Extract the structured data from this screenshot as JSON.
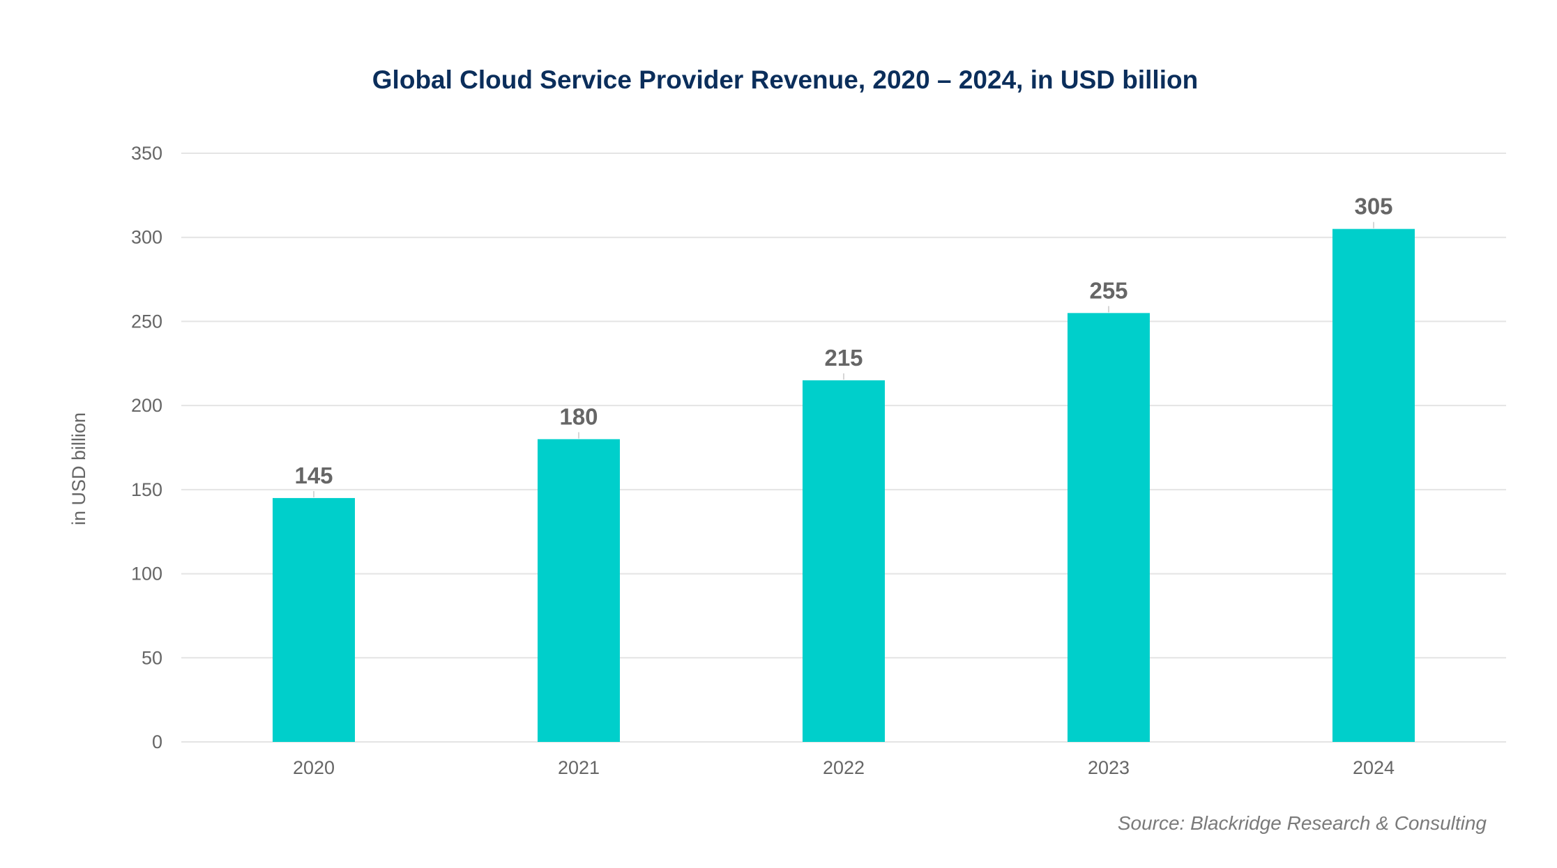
{
  "chart_data": {
    "type": "bar",
    "title": "Global Cloud Service Provider Revenue, 2020 – 2024, in USD billion",
    "xlabel": "",
    "ylabel": "in USD billion",
    "categories": [
      "2020",
      "2021",
      "2022",
      "2023",
      "2024"
    ],
    "values": [
      145,
      180,
      215,
      255,
      305
    ],
    "data_labels": [
      "145",
      "180",
      "215",
      "255",
      "305"
    ],
    "ylim": [
      0,
      350
    ],
    "yticks": [
      0,
      50,
      100,
      150,
      200,
      250,
      300,
      350
    ],
    "ytick_labels": [
      "0",
      "50",
      "100",
      "150",
      "200",
      "250",
      "300",
      "350"
    ],
    "grid": true,
    "legend": "none",
    "bar_color": "#00cfcb",
    "source": "Source: Blackridge Research & Consulting"
  }
}
